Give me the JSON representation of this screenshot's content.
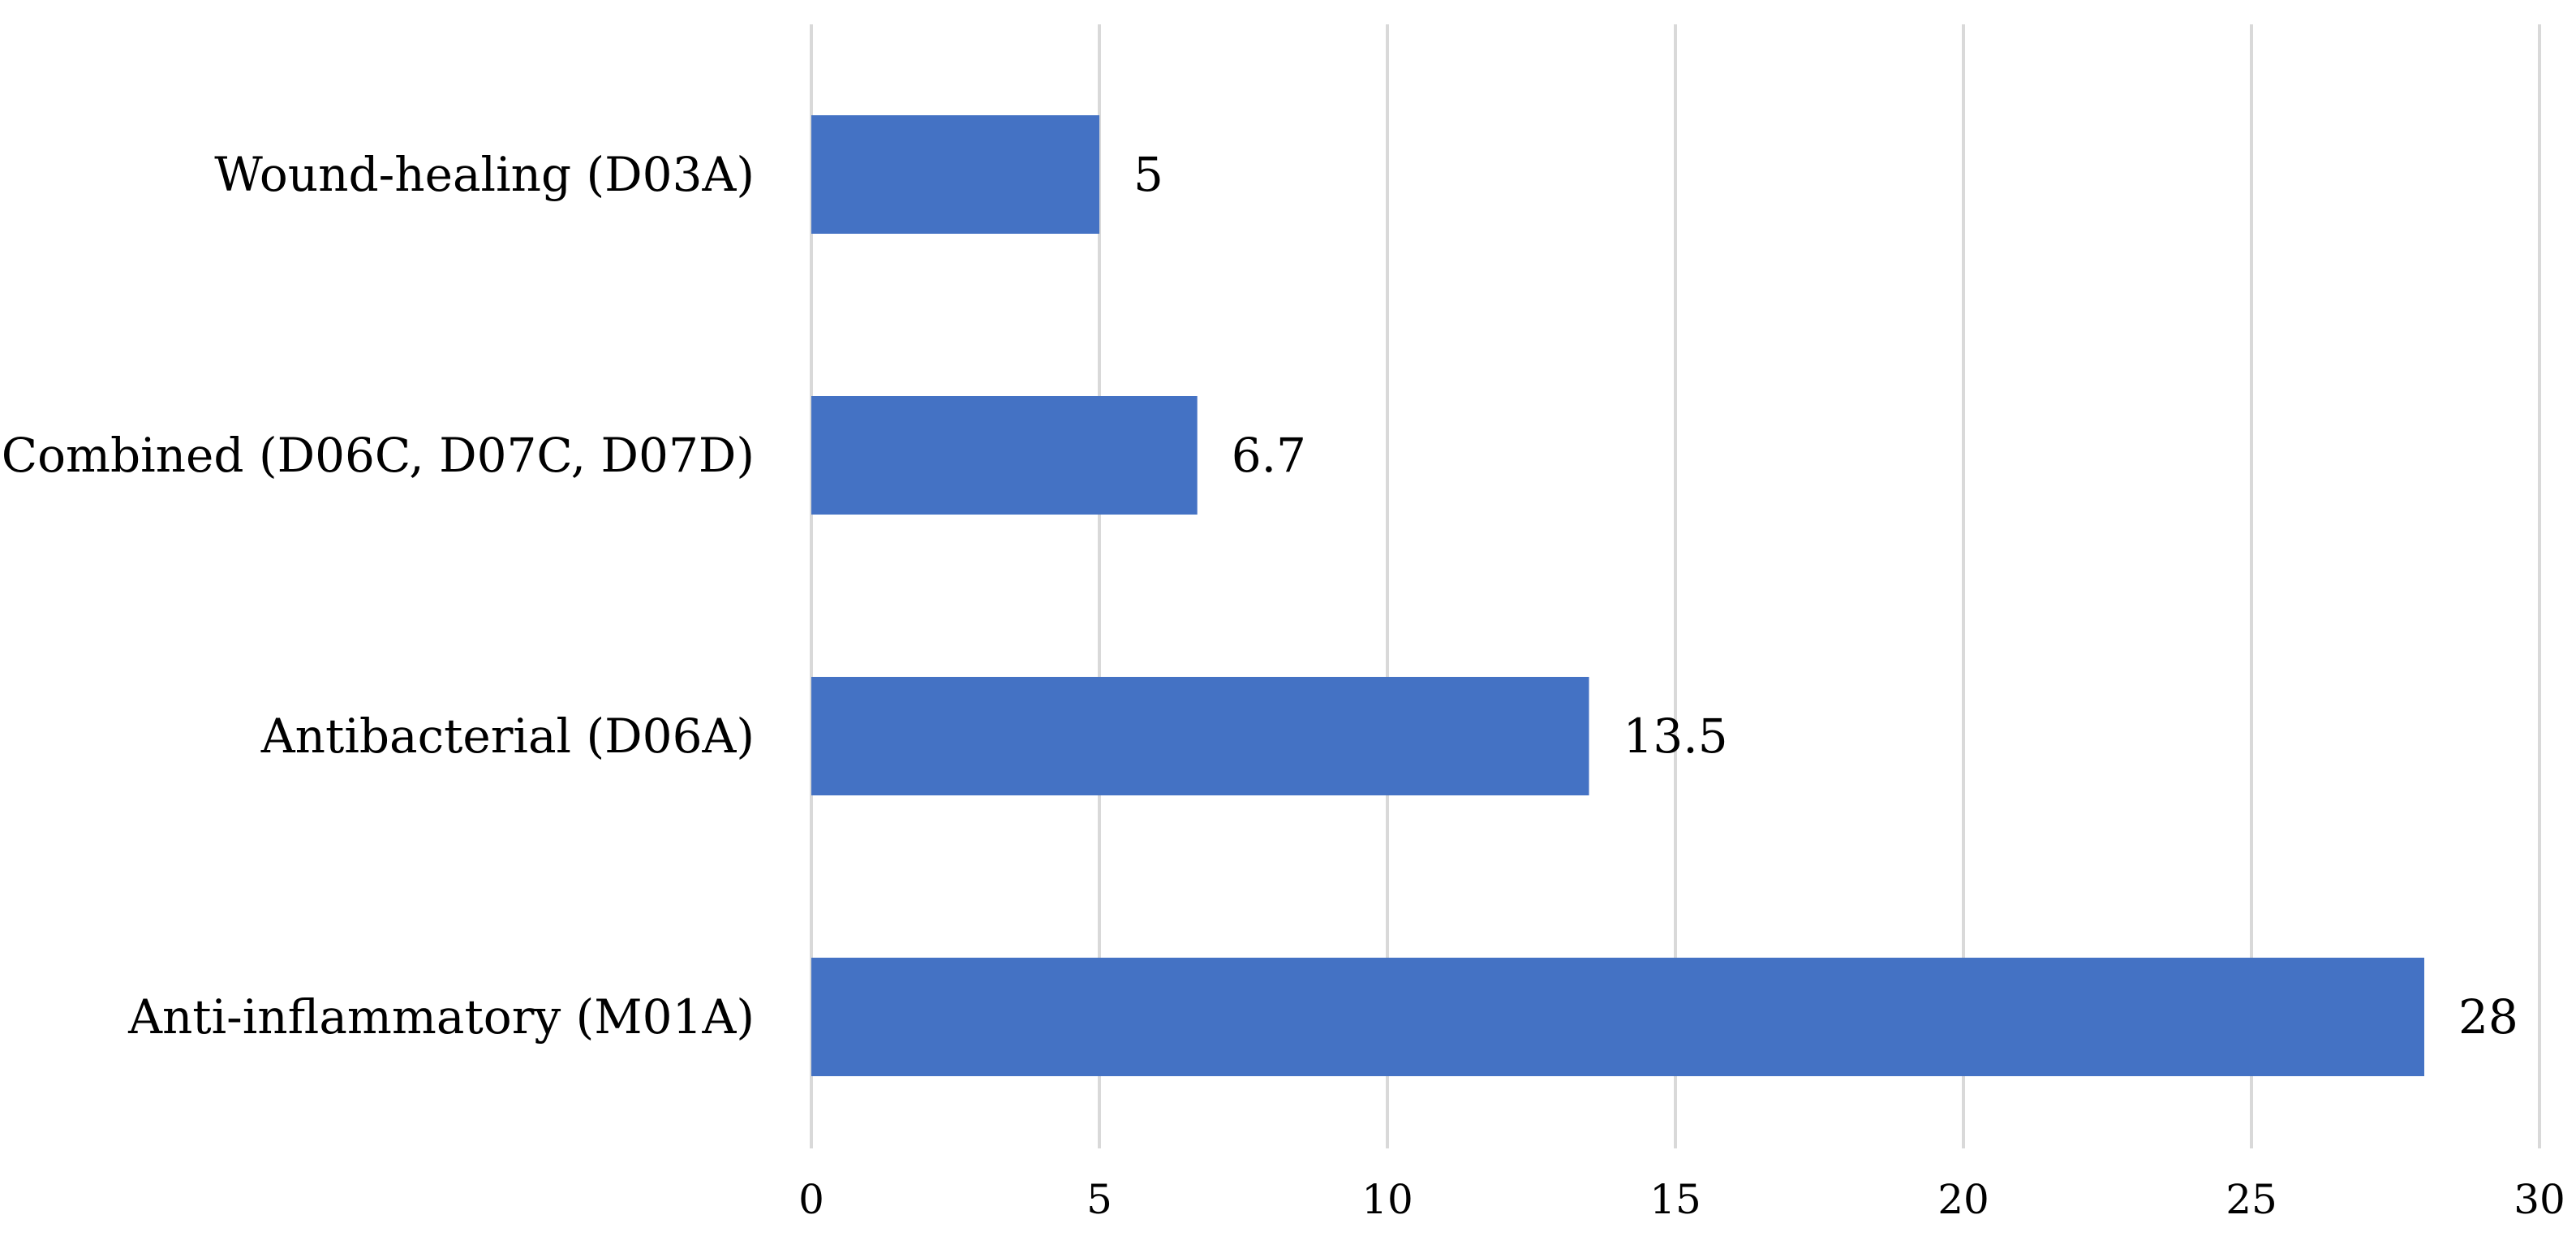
{
  "chart_data": {
    "type": "bar",
    "orientation": "horizontal",
    "categories": [
      "Wound-healing (D03A)",
      "Combined (D06C, D07C, D07D)",
      "Antibacterial (D06A)",
      "Anti-inflammatory (M01A)"
    ],
    "values": [
      5,
      6.7,
      13.5,
      28
    ],
    "value_labels": [
      "5",
      "6.7",
      "13.5",
      "28"
    ],
    "xlim": [
      0,
      30
    ],
    "x_ticks": [
      0,
      5,
      10,
      15,
      20,
      25,
      30
    ],
    "x_tick_labels": [
      "0",
      "5",
      "10",
      "15",
      "20",
      "25",
      "30"
    ],
    "grid": "vertical",
    "legend": "none",
    "bar_color": "#4472C4",
    "grid_color": "#D9D9D9"
  }
}
